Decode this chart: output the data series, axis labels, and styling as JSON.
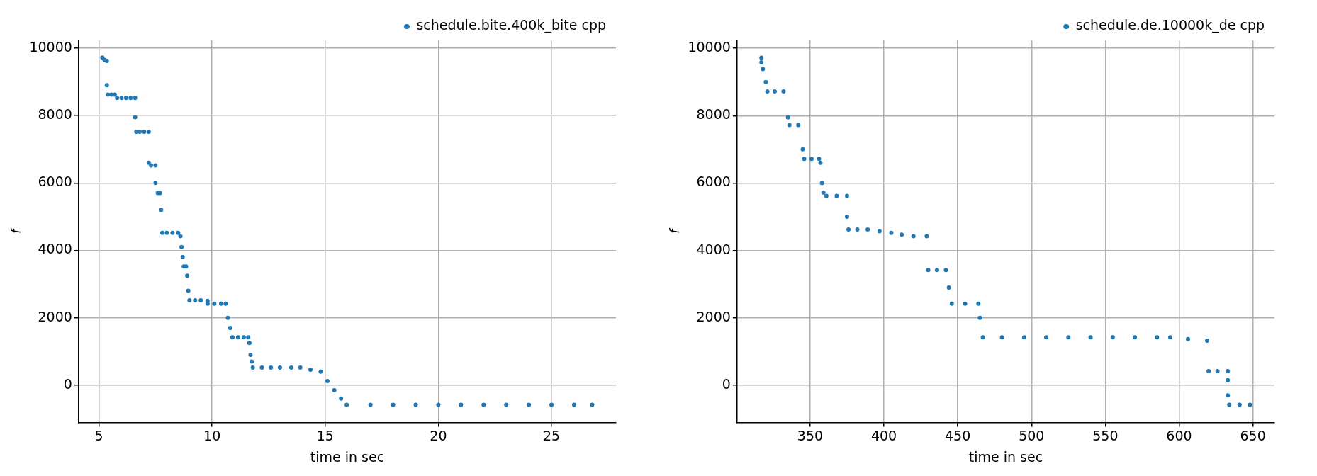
{
  "chart_data": [
    {
      "type": "scatter",
      "xlabel": "time in sec",
      "ylabel": "f",
      "legend": "top right",
      "grid": true,
      "marker": "circle",
      "xlim": [
        4.1,
        27.85
      ],
      "xticks": [
        5,
        10,
        15,
        20,
        25
      ],
      "ylim": [
        -1105,
        10230
      ],
      "yticks": [
        0,
        2000,
        4000,
        6000,
        8000,
        10000
      ],
      "series": [
        {
          "name": "schedule.bite.400k_bite cpp",
          "color": "#1f77b4",
          "x": [
            5.15,
            5.25,
            5.35,
            5.35,
            5.4,
            5.55,
            5.7,
            5.8,
            6.0,
            6.2,
            6.4,
            6.6,
            6.6,
            6.65,
            6.8,
            7.0,
            7.2,
            7.2,
            7.3,
            7.5,
            7.5,
            7.6,
            7.7,
            7.75,
            7.8,
            8.0,
            8.25,
            8.5,
            8.6,
            8.65,
            8.7,
            8.75,
            8.85,
            8.9,
            8.95,
            9.0,
            9.25,
            9.5,
            9.8,
            9.8,
            10.1,
            10.4,
            10.6,
            10.7,
            10.8,
            10.9,
            11.15,
            11.4,
            11.6,
            11.65,
            11.7,
            11.75,
            11.8,
            12.2,
            12.6,
            13.0,
            13.5,
            13.9,
            14.35,
            14.8,
            15.1,
            15.4,
            15.7,
            15.95,
            17,
            18,
            19,
            20,
            21,
            22,
            23,
            24,
            25,
            26,
            26.8
          ],
          "values": [
            9720,
            9650,
            9620,
            8900,
            8620,
            8620,
            8620,
            8520,
            8520,
            8520,
            8520,
            8520,
            7950,
            7520,
            7520,
            7520,
            7520,
            6600,
            6520,
            6520,
            6000,
            5700,
            5700,
            5200,
            4520,
            4520,
            4520,
            4520,
            4420,
            4100,
            3800,
            3520,
            3520,
            3250,
            2800,
            2520,
            2520,
            2520,
            2500,
            2420,
            2420,
            2420,
            2420,
            2000,
            1700,
            1420,
            1420,
            1420,
            1420,
            1250,
            900,
            700,
            520,
            520,
            520,
            520,
            520,
            520,
            460,
            400,
            120,
            -150,
            -400,
            -580,
            -580,
            -580,
            -580,
            -580,
            -580,
            -580,
            -580,
            -580,
            -580,
            -580,
            -580
          ]
        }
      ]
    },
    {
      "type": "scatter",
      "xlabel": "time in sec",
      "ylabel": "f",
      "legend": "top right",
      "grid": true,
      "marker": "circle",
      "xlim": [
        300.5,
        664.6
      ],
      "xticks": [
        350,
        400,
        450,
        500,
        550,
        600,
        650
      ],
      "ylim": [
        -1103,
        10233
      ],
      "yticks": [
        0,
        2000,
        4000,
        6000,
        8000,
        10000
      ],
      "series": [
        {
          "name": "schedule.de.10000k_de cpp",
          "color": "#1f77b4",
          "x": [
            317,
            317,
            318,
            320,
            321,
            326,
            332,
            335,
            336,
            342,
            345,
            346,
            351,
            356,
            357,
            358,
            359,
            361,
            368,
            375,
            375,
            376,
            382,
            389,
            397,
            405,
            412,
            420,
            429,
            430,
            436,
            442,
            444,
            446,
            455,
            464,
            465,
            467,
            480,
            495,
            510,
            525,
            540,
            555,
            570,
            585,
            594,
            606,
            619,
            620,
            626,
            633,
            633,
            633,
            634,
            641,
            648
          ],
          "values": [
            9720,
            9580,
            9380,
            9000,
            8720,
            8720,
            8720,
            7950,
            7720,
            7720,
            7000,
            6720,
            6720,
            6720,
            6600,
            6000,
            5720,
            5620,
            5620,
            5620,
            5000,
            4620,
            4620,
            4620,
            4570,
            4520,
            4470,
            4420,
            4420,
            3420,
            3420,
            3420,
            2900,
            2420,
            2420,
            2420,
            2000,
            1420,
            1420,
            1420,
            1420,
            1420,
            1420,
            1420,
            1420,
            1420,
            1420,
            1370,
            1320,
            420,
            420,
            420,
            150,
            -300,
            -580,
            -580,
            -580
          ]
        }
      ]
    }
  ]
}
